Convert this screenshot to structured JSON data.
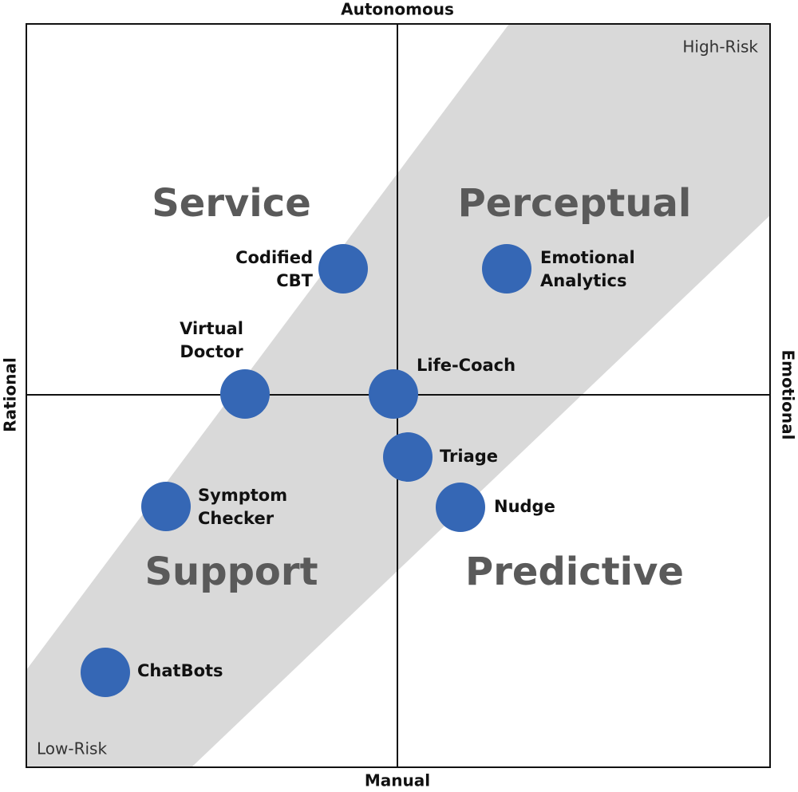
{
  "axes": {
    "top": "Autonomous",
    "bottom": "Manual",
    "left": "Rational",
    "right": "Emotional"
  },
  "corners": {
    "top_right": "High-Risk",
    "bottom_left": "Low-Risk"
  },
  "quadrants": [
    "Service",
    "Perceptual",
    "Support",
    "Predictive"
  ],
  "nodes": [
    {
      "lines": [
        "Codified",
        "CBT"
      ]
    },
    {
      "lines": [
        "Emotional",
        "Analytics"
      ]
    },
    {
      "lines": [
        "Virtual",
        "Doctor"
      ]
    },
    {
      "lines": [
        "Life-Coach"
      ]
    },
    {
      "lines": [
        "Triage"
      ]
    },
    {
      "lines": [
        "Symptom",
        "Checker"
      ]
    },
    {
      "lines": [
        "Nudge"
      ]
    },
    {
      "lines": [
        "ChatBots"
      ]
    }
  ]
}
